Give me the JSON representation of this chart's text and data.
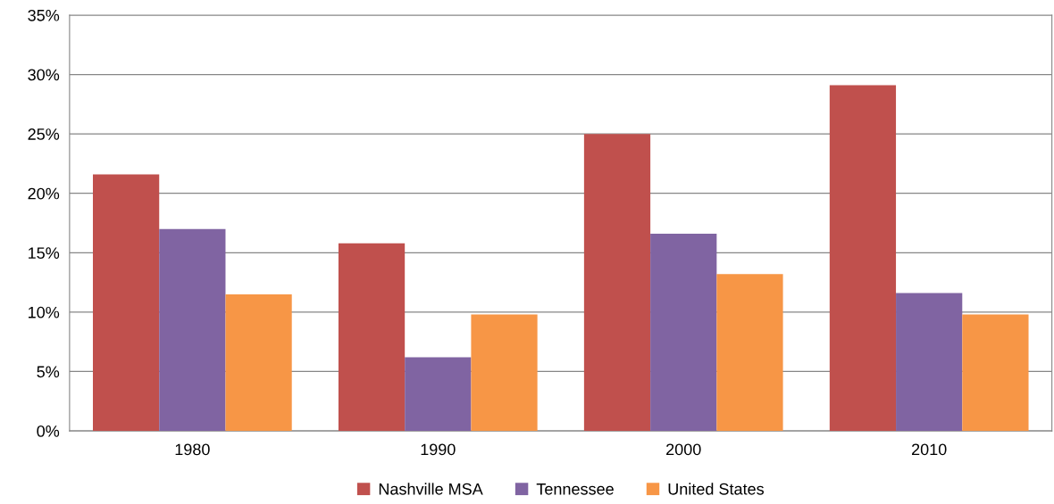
{
  "chart_data": {
    "type": "bar",
    "categories": [
      "1980",
      "1990",
      "2000",
      "2010"
    ],
    "series": [
      {
        "name": "Nashville MSA",
        "color": "#c0504d",
        "values": [
          21.6,
          15.8,
          25.0,
          29.1
        ]
      },
      {
        "name": "Tennessee",
        "color": "#8064a2",
        "values": [
          17.0,
          6.2,
          16.6,
          11.6
        ]
      },
      {
        "name": "United States",
        "color": "#f79646",
        "values": [
          11.5,
          9.8,
          13.2,
          9.8
        ]
      }
    ],
    "ylim": [
      0,
      35
    ],
    "yticks": [
      {
        "value": 0,
        "label": "0%"
      },
      {
        "value": 5,
        "label": "5%"
      },
      {
        "value": 10,
        "label": "10%"
      },
      {
        "value": 15,
        "label": "15%"
      },
      {
        "value": 20,
        "label": "20%"
      },
      {
        "value": 25,
        "label": "25%"
      },
      {
        "value": 30,
        "label": "30%"
      },
      {
        "value": 35,
        "label": "35%"
      }
    ],
    "grid": "y",
    "legend": "bottom"
  }
}
